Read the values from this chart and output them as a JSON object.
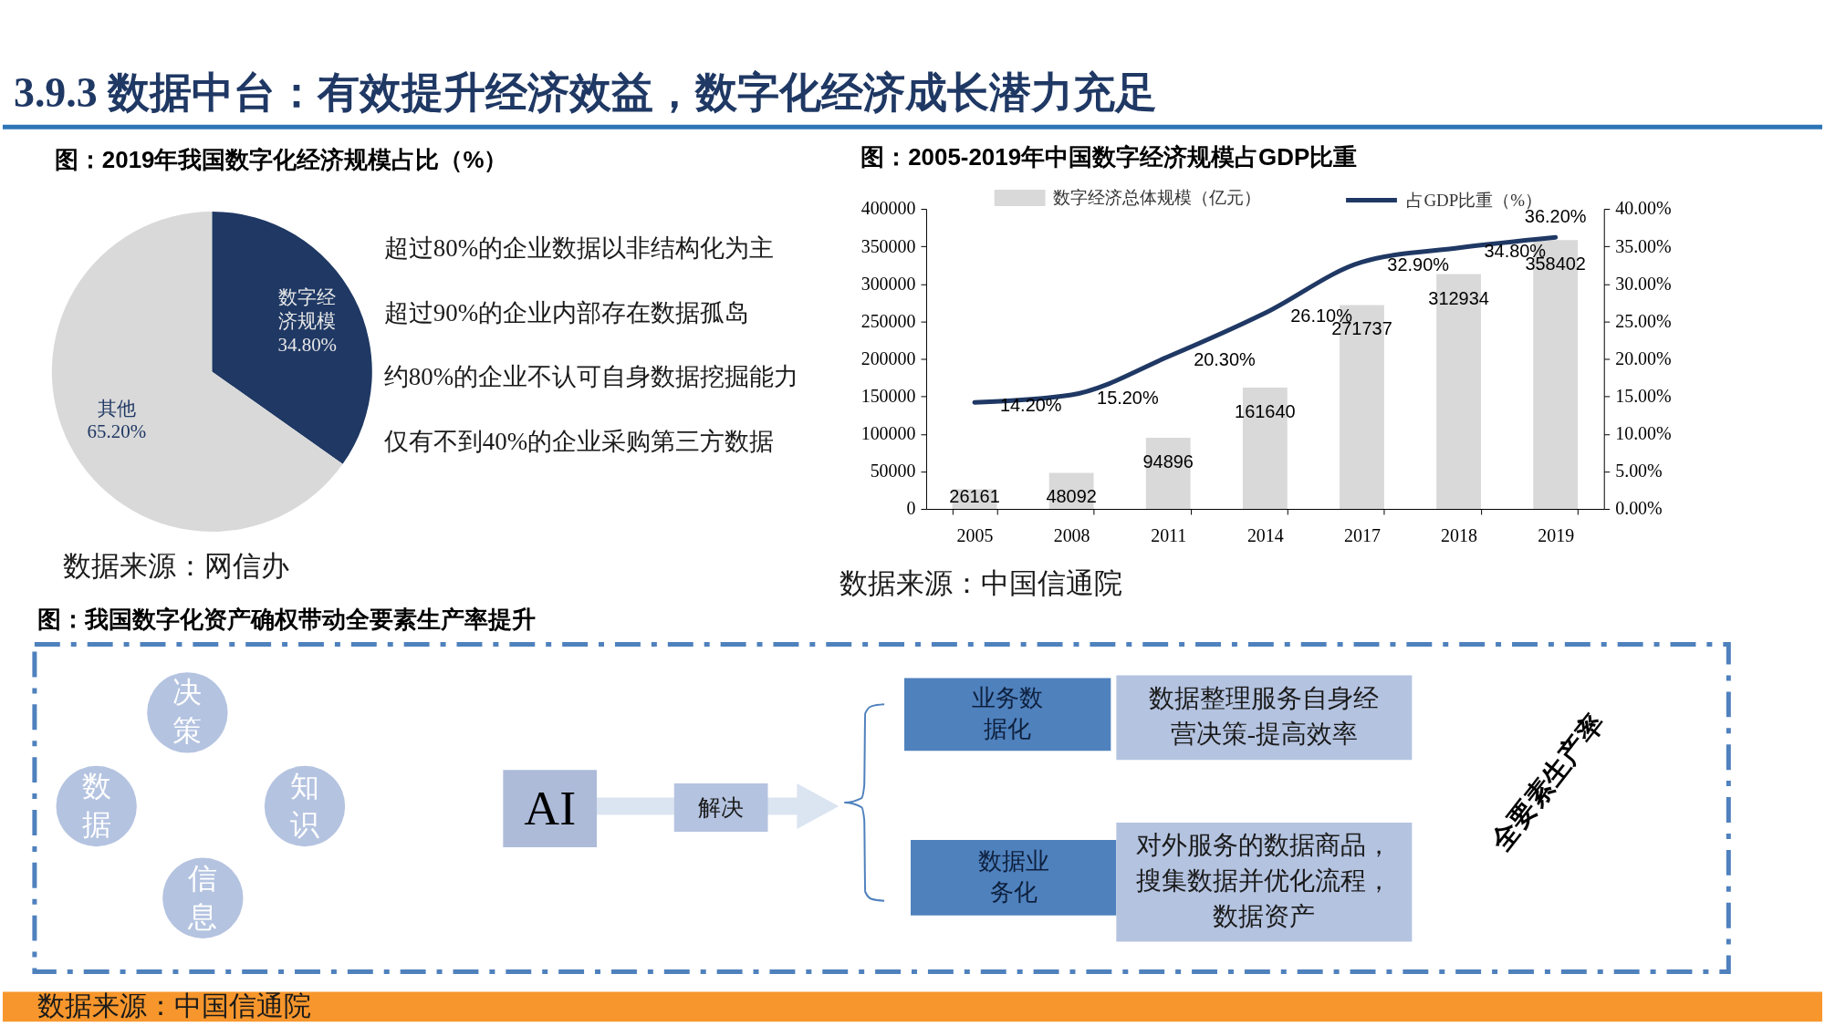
{
  "chart_data": [
    {
      "type": "pie",
      "title": "3.9.3 数据中台：有效提升经济效益，数字化经济成长潜力充足",
      "subtitle": "图：2019年我国数字化经济规模占比（%）",
      "categories": [
        "数字经济规模",
        "其他"
      ],
      "values": [
        34.8,
        65.2
      ],
      "colors": [
        "#1f3864",
        "#d9d9d9"
      ],
      "value_labels": [
        "34.80%",
        "65.20%"
      ],
      "annotations": [
        "超过80%的企业数据以非结构化为主",
        "超过90%的企业内部存在数据孤岛",
        "约80%的企业不认可自身数据挖掘能力",
        "仅有不到40%的企业采购第三方数据",
        "数据来源：网信办"
      ]
    },
    {
      "type": "bar",
      "title": "图：2005-2019年中国数字经济规模占GDP比重",
      "categories": [
        "2005",
        "2008",
        "2011",
        "2014",
        "2017",
        "2018",
        "2019"
      ],
      "series": [
        {
          "name": "数字经济总体规模（亿元）",
          "type": "bar",
          "color": "#d9d9d9",
          "values": [
            26161,
            48092,
            94896,
            161640,
            271737,
            312934,
            358402
          ],
          "value_labels": [
            "26161",
            "48092",
            "94896",
            "161640",
            "271737",
            "312934",
            "358402"
          ]
        },
        {
          "name": "占GDP比重（%）",
          "type": "line",
          "axis": "y2",
          "color": "#1f3864",
          "values": [
            14.2,
            15.2,
            20.3,
            26.1,
            32.9,
            34.8,
            36.2
          ],
          "value_labels": [
            "14.20%",
            "15.20%",
            "20.30%",
            "26.10%",
            "32.90%",
            "34.80%",
            "36.20%"
          ]
        }
      ],
      "ylim": [
        0,
        400000
      ],
      "yticks": [
        0,
        50000,
        100000,
        150000,
        200000,
        250000,
        300000,
        350000,
        400000
      ],
      "y2lim": [
        0,
        40
      ],
      "y2ticks": [
        {
          "value": 0,
          "label": "0.00%"
        },
        {
          "value": 5,
          "label": "5.00%"
        },
        {
          "value": 10,
          "label": "10.00%"
        },
        {
          "value": 15,
          "label": "15.00%"
        },
        {
          "value": 20,
          "label": "20.00%"
        },
        {
          "value": 25,
          "label": "25.00%"
        },
        {
          "value": 30,
          "label": "30.00%"
        },
        {
          "value": 35,
          "label": "35.00%"
        },
        {
          "value": 40,
          "label": "40.00%"
        }
      ],
      "legend": "top",
      "annotations": [
        "数据来源：中国信通院"
      ]
    },
    {
      "type": "other",
      "title": "图：我国数字化资产确权带动全要素生产率提升",
      "annotations": [
        "决策",
        "知识",
        "信息",
        "数据",
        "AI",
        "解决",
        "业务数据化",
        "数据整理服务自身经营决策-提高效率",
        "数据业务化",
        "对外服务的数据商品，搜集数据并优化流程，数据资产",
        "全要素生产率",
        "数据来源：中国信通院"
      ]
    }
  ]
}
